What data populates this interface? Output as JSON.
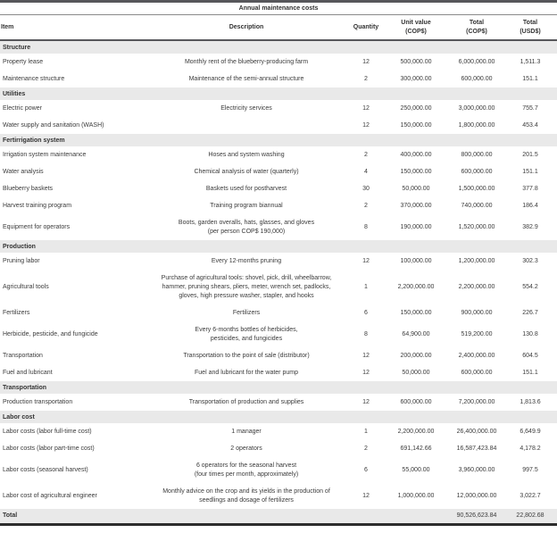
{
  "table": {
    "title": "Annual maintenance costs",
    "colors": {
      "rule-dark": "#57575b",
      "rule-mid": "#8a8a8a",
      "rule-black": "#2d2d2d",
      "section-bg": "#e9e9e9",
      "text": "#3b3b3b"
    },
    "columns": [
      {
        "key": "item",
        "label": "Item"
      },
      {
        "key": "description",
        "label": "Description"
      },
      {
        "key": "quantity",
        "label": "Quantity"
      },
      {
        "key": "unit_value",
        "label": "Unit value\n(COP$)"
      },
      {
        "key": "total_cop",
        "label": "Total\n(COP$)"
      },
      {
        "key": "total_usd",
        "label": "Total\n(USD$)"
      }
    ],
    "rows": [
      {
        "type": "section",
        "item": "Structure"
      },
      {
        "type": "item",
        "item": "Property lease",
        "description": "Monthly rent of the blueberry-producing farm",
        "quantity": "12",
        "unit_value": "500,000.00",
        "total_cop": "6,000,000.00",
        "total_usd": "1,511.3"
      },
      {
        "type": "item",
        "item": "Maintenance structure",
        "description": "Maintenance of the semi-annual structure",
        "quantity": "2",
        "unit_value": "300,000.00",
        "total_cop": "600,000.00",
        "total_usd": "151.1"
      },
      {
        "type": "section",
        "item": "Utilities"
      },
      {
        "type": "item",
        "item": "Electric power",
        "description": "Electricity services",
        "quantity": "12",
        "unit_value": "250,000.00",
        "total_cop": "3,000,000.00",
        "total_usd": "755.7"
      },
      {
        "type": "item",
        "item": "Water supply and sanitation (WASH)",
        "description": "",
        "quantity": "12",
        "unit_value": "150,000.00",
        "total_cop": "1,800,000.00",
        "total_usd": "453.4"
      },
      {
        "type": "section",
        "item": "Fertirrigation system"
      },
      {
        "type": "item",
        "item": "Irrigation system maintenance",
        "description": "Hoses and system washing",
        "quantity": "2",
        "unit_value": "400,000.00",
        "total_cop": "800,000.00",
        "total_usd": "201.5"
      },
      {
        "type": "item",
        "item": "Water analysis",
        "description": "Chemical analysis of water (quarterly)",
        "quantity": "4",
        "unit_value": "150,000.00",
        "total_cop": "600,000.00",
        "total_usd": "151.1"
      },
      {
        "type": "item",
        "item": "Blueberry baskets",
        "description": "Baskets used for postharvest",
        "quantity": "30",
        "unit_value": "50,000.00",
        "total_cop": "1,500,000.00",
        "total_usd": "377.8"
      },
      {
        "type": "item",
        "item": "Harvest training program",
        "description": "Training program biannual",
        "quantity": "2",
        "unit_value": "370,000.00",
        "total_cop": "740,000.00",
        "total_usd": "186.4"
      },
      {
        "type": "item",
        "item": "Equipment for operators",
        "description": "Boots, garden overalls, hats, glasses, and gloves\n(per person COP$ 190,000)",
        "quantity": "8",
        "unit_value": "190,000.00",
        "total_cop": "1,520,000.00",
        "total_usd": "382.9",
        "usd_low": true
      },
      {
        "type": "section",
        "item": "Production"
      },
      {
        "type": "item",
        "item": "Pruning labor",
        "description": "Every 12-months pruning",
        "quantity": "12",
        "unit_value": "100,000.00",
        "total_cop": "1,200,000.00",
        "total_usd": "302.3"
      },
      {
        "type": "item",
        "item": "Agricultural tools",
        "description": "Purchase of agricultural tools: shovel, pick, drill, wheelbarrow,\nhammer, pruning shears, pliers, meter, wrench set, padlocks,\ngloves, high pressure washer, stapler, and hooks",
        "quantity": "1",
        "unit_value": "2,200,000.00",
        "total_cop": "2,200,000.00",
        "total_usd": "554.2"
      },
      {
        "type": "item",
        "item": "Fertilizers",
        "description": "Fertilizers",
        "quantity": "6",
        "unit_value": "150,000.00",
        "total_cop": "900,000.00",
        "total_usd": "226.7"
      },
      {
        "type": "item",
        "item": "Herbicide, pesticide, and fungicide",
        "description": "Every 6-months bottles of herbicides,\npesticides, and fungicides",
        "quantity": "8",
        "unit_value": "64,900.00",
        "total_cop": "519,200.00",
        "total_usd": "130.8",
        "usd_low": true
      },
      {
        "type": "item",
        "item": "Transportation",
        "description": "Transportation to the point of sale (distributor)",
        "quantity": "12",
        "unit_value": "200,000.00",
        "total_cop": "2,400,000.00",
        "total_usd": "604.5"
      },
      {
        "type": "item",
        "item": "Fuel and lubricant",
        "description": "Fuel and lubricant for the water pump",
        "quantity": "12",
        "unit_value": "50,000.00",
        "total_cop": "600,000.00",
        "total_usd": "151.1"
      },
      {
        "type": "section",
        "item": "Transportation"
      },
      {
        "type": "item",
        "item": "Production transportation",
        "description": "Transportation of production and supplies",
        "quantity": "12",
        "unit_value": "600,000.00",
        "total_cop": "7,200,000.00",
        "total_usd": "1,813.6"
      },
      {
        "type": "section",
        "item": "Labor cost"
      },
      {
        "type": "item",
        "item": "Labor costs (labor full-time cost)",
        "description": "1 manager",
        "quantity": "1",
        "unit_value": "2,200,000.00",
        "total_cop": "26,400,000.00",
        "total_usd": "6,649.9"
      },
      {
        "type": "item",
        "item": "Labor costs (labor part-time cost)",
        "description": "2 operators",
        "quantity": "2",
        "unit_value": "691,142.66",
        "total_cop": "16,587,423.84",
        "total_usd": "4,178.2"
      },
      {
        "type": "item",
        "item": "Labor costs (seasonal harvest)",
        "description": "6 operators for the seasonal harvest\n(four times per month, approximately)",
        "quantity": "6",
        "unit_value": "55,000.00",
        "total_cop": "3,960,000.00",
        "total_usd": "997.5"
      },
      {
        "type": "item",
        "item": "Labor cost of agricultural engineer",
        "description": "Monthly advice on the crop and its yields in the production of\nseedlings and dosage of fertilizers",
        "quantity": "12",
        "unit_value": "1,000,000.00",
        "total_cop": "12,000,000.00",
        "total_usd": "3,022.7"
      },
      {
        "type": "total",
        "item": "Total",
        "total_cop": "90,526,623.84",
        "total_usd": "22,802.68"
      }
    ]
  }
}
